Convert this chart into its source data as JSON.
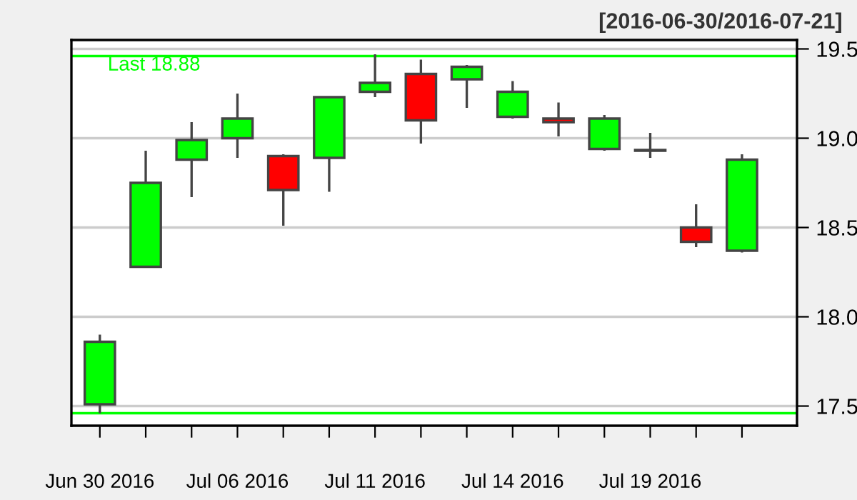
{
  "chart_data": {
    "type": "candlestick",
    "title": "[2016-06-30/2016-07-21]",
    "categories": [
      "Jun 30 2016",
      null,
      null,
      "Jul 06 2016",
      null,
      null,
      "Jul 11 2016",
      null,
      null,
      "Jul 14 2016",
      null,
      null,
      "Jul 19 2016",
      null,
      null
    ],
    "ohlc": [
      [
        17.51,
        17.9,
        17.46,
        17.86
      ],
      [
        18.28,
        18.93,
        18.28,
        18.75
      ],
      [
        18.88,
        19.09,
        18.67,
        18.99
      ],
      [
        19.0,
        19.25,
        18.89,
        19.11
      ],
      [
        18.9,
        18.91,
        18.51,
        18.71
      ],
      [
        18.89,
        19.23,
        18.7,
        19.23
      ],
      [
        19.26,
        19.47,
        19.23,
        19.31
      ],
      [
        19.36,
        19.44,
        18.97,
        19.1
      ],
      [
        19.33,
        19.41,
        19.17,
        19.4
      ],
      [
        19.12,
        19.32,
        19.11,
        19.26
      ],
      [
        19.11,
        19.2,
        19.01,
        19.09
      ],
      [
        18.94,
        19.13,
        18.93,
        19.11
      ],
      [
        18.93,
        19.03,
        18.89,
        18.93
      ],
      [
        18.5,
        18.63,
        18.39,
        18.42
      ],
      [
        18.37,
        18.91,
        18.36,
        18.88
      ]
    ],
    "colors": [
      "#00ff00",
      "#00ff00",
      "#00ff00",
      "#00ff00",
      "#ff0000",
      "#00ff00",
      "#00ff00",
      "#ff0000",
      "#00ff00",
      "#00ff00",
      "#ff0000",
      "#00ff00",
      "#444444",
      "#ff0000",
      "#00ff00"
    ],
    "ylim": [
      17.39,
      19.55
    ],
    "yticks": [
      17.5,
      {
        "value": 18,
        "label": "18.0"
      },
      18.5,
      {
        "value": 19,
        "label": "19.0"
      },
      19.5
    ],
    "grid": "y",
    "ref_lines": [
      {
        "axis": "y",
        "value": 19.46,
        "label": "Last 18.88",
        "color": "#00ff00"
      },
      {
        "axis": "y",
        "value": 17.46,
        "color": "#00ff00"
      }
    ]
  }
}
